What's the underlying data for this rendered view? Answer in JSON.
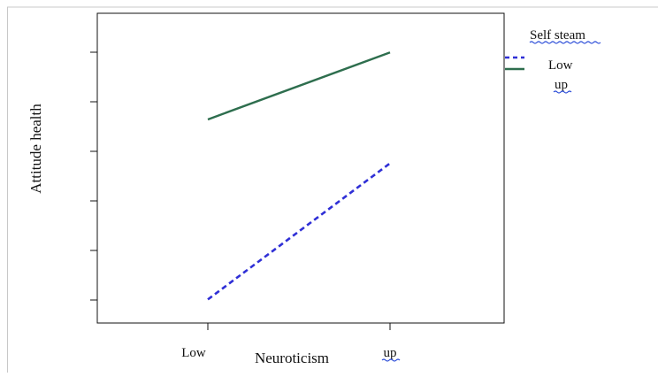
{
  "chart_data": {
    "type": "line",
    "title": "",
    "xlabel": "Neuroticism",
    "ylabel": "Attitude health",
    "categories": [
      "Low",
      "up"
    ],
    "ylim": [
      0,
      6
    ],
    "y_tick_count": 6,
    "y_tick_labels_shown": false,
    "grid": false,
    "legend": {
      "title": "Self steam",
      "placement": "right"
    },
    "series": [
      {
        "name": "Low",
        "values": [
          0.05,
          3.0
        ],
        "color": "#2f2fd6",
        "line_style": "dashed"
      },
      {
        "name": "up",
        "values": [
          3.95,
          5.4
        ],
        "color": "#2e6e4e",
        "line_style": "solid"
      }
    ]
  }
}
